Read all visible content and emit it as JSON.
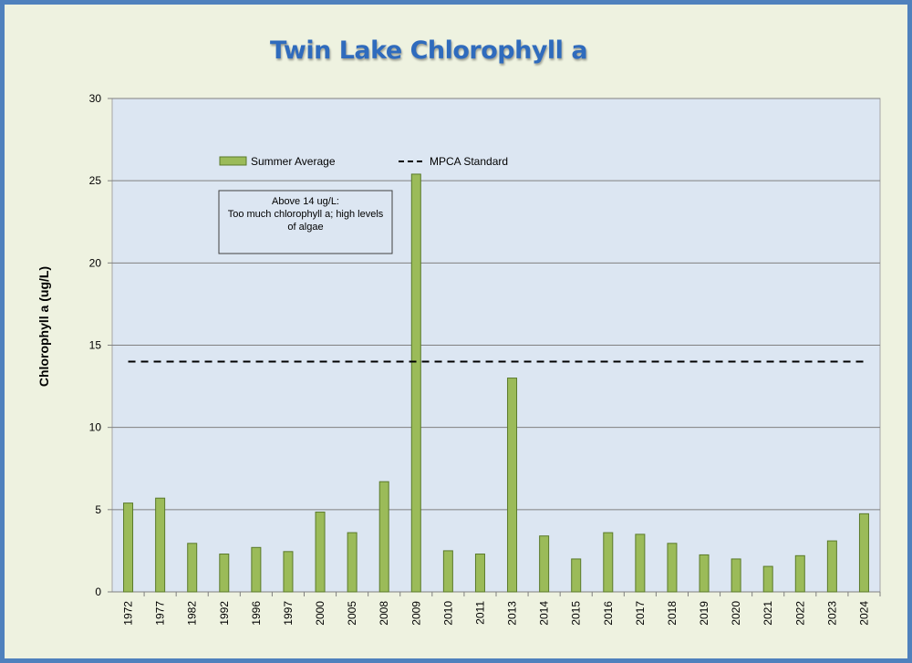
{
  "chart_data": {
    "type": "bar",
    "title": "Twin Lake Chlorophyll a",
    "ylabel": "Chlorophyll a (ug/L)",
    "xlabel": "",
    "ylim": [
      0,
      30
    ],
    "yticks": [
      0,
      5,
      10,
      15,
      20,
      25,
      30
    ],
    "grid": "horizontal",
    "categories": [
      "1972",
      "1977",
      "1982",
      "1992",
      "1996",
      "1997",
      "2000",
      "2005",
      "2008",
      "2009",
      "2010",
      "2011",
      "2013",
      "2014",
      "2015",
      "2016",
      "2017",
      "2018",
      "2019",
      "2020",
      "2021",
      "2022",
      "2023",
      "2024"
    ],
    "series": [
      {
        "name": "Summer Average",
        "color": "#9bbb59",
        "values": [
          5.4,
          5.7,
          2.95,
          2.3,
          2.7,
          2.45,
          4.85,
          3.6,
          6.7,
          25.4,
          2.5,
          2.3,
          13.0,
          3.4,
          2.0,
          3.6,
          3.5,
          2.95,
          2.25,
          2.0,
          1.55,
          2.2,
          3.1,
          4.75
        ]
      }
    ],
    "reference_line": {
      "name": "MPCA Standard",
      "value": 14,
      "style": "dashed"
    },
    "annotation": {
      "lines": [
        "Above 14 ug/L:",
        "Too much chlorophyll a; high levels",
        "of algae"
      ]
    },
    "colors": {
      "plot_background": "#dce6f2",
      "bar_fill": "#9bbb59",
      "bar_edge": "#5a7a2a",
      "frame": "#4f81bd",
      "title": "#2f6bbd"
    }
  }
}
